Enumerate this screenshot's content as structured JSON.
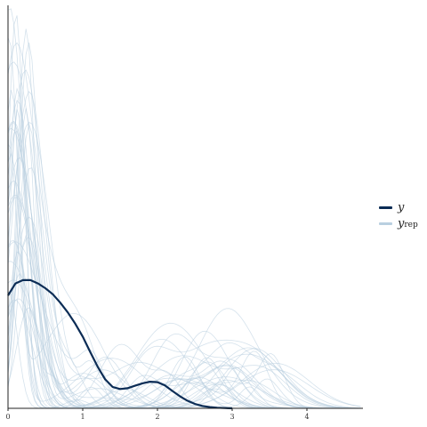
{
  "chart_data": {
    "type": "line",
    "title": "",
    "xlabel": "",
    "ylabel": "",
    "xlim": [
      0,
      4.75
    ],
    "ylim": [
      0,
      1.0
    ],
    "x_ticks": [
      "0",
      "1",
      "2",
      "3",
      "4"
    ],
    "grid": false,
    "legend_position": "right",
    "colors": {
      "y": "#0b2c55",
      "yrep": "#b9cfe0"
    },
    "legend": {
      "y": {
        "label": "y",
        "subscript": ""
      },
      "yrep": {
        "label": "y",
        "subscript": "rep"
      }
    },
    "series_y": {
      "name": "y",
      "x": [
        0,
        0.1,
        0.2,
        0.3,
        0.4,
        0.5,
        0.6,
        0.7,
        0.8,
        0.9,
        1.0,
        1.1,
        1.2,
        1.3,
        1.4,
        1.5,
        1.6,
        1.7,
        1.8,
        1.9,
        2.0,
        2.1,
        2.2,
        2.3,
        2.4,
        2.5,
        2.6,
        2.7,
        2.8,
        2.9,
        3.0
      ],
      "y": [
        0.28,
        0.31,
        0.318,
        0.318,
        0.31,
        0.298,
        0.283,
        0.262,
        0.238,
        0.21,
        0.178,
        0.14,
        0.103,
        0.072,
        0.053,
        0.048,
        0.05,
        0.056,
        0.062,
        0.066,
        0.065,
        0.057,
        0.043,
        0.03,
        0.019,
        0.011,
        0.006,
        0.003,
        0.0015,
        0.0006,
        0
      ]
    },
    "yrep_draws": 40
  }
}
